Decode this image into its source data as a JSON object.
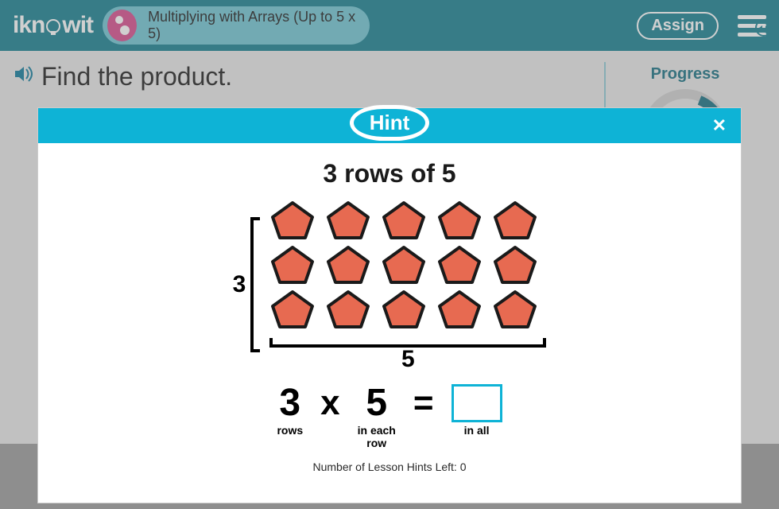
{
  "header": {
    "logo_text_a": "ikn",
    "logo_text_b": "wit",
    "lesson_title": "Multiplying with Arrays (Up to 5 x 5)",
    "assign_label": "Assign"
  },
  "question": {
    "text": "Find the product."
  },
  "side": {
    "progress_label": "Progress"
  },
  "colors": {
    "header_bg": "#147e90",
    "pill_bg": "#6fc5d3",
    "lesson_icon_bg": "#d74b8d",
    "modal_header_bg": "#0eb3d6",
    "pentagon_fill": "#e76a51",
    "pentagon_stroke": "#1a1a1a",
    "progress_ring": "#146f82",
    "answer_border": "#0eb3d6"
  },
  "hint": {
    "label": "Hint",
    "title": "3 rows of 5",
    "rows": 3,
    "cols": 5,
    "row_label": "3",
    "col_label": "5",
    "equation": {
      "a": "3",
      "op1": "x",
      "b": "5",
      "op2": "=",
      "a_label": "rows",
      "b_label": "in each\nrow",
      "ans_label": "in all"
    },
    "hints_left_text": "Number of Lesson Hints Left: 0"
  }
}
